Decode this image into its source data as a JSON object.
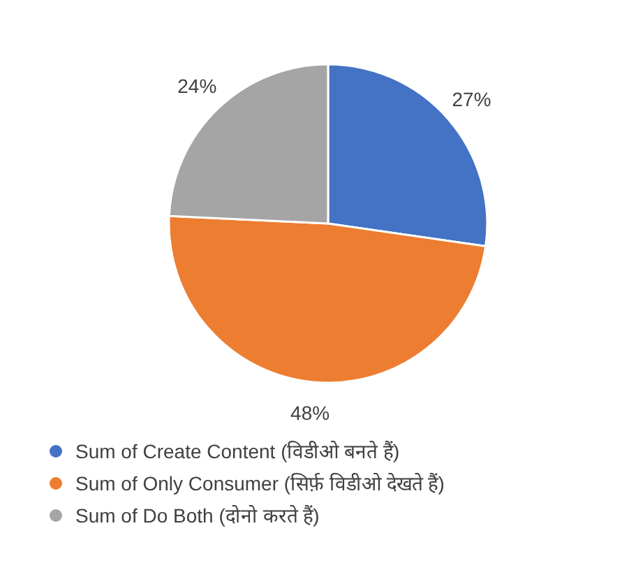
{
  "chart_data": {
    "type": "pie",
    "categories": [
      "Sum of Create Content (विडीओ बनते हैं)",
      "Sum of Only Consumer (सिर्फ़ विडीओ देखते हैं)",
      "Sum of Do Both (दोनो करते हैं)"
    ],
    "values": [
      27,
      48,
      24
    ],
    "colors": [
      "#4472c4",
      "#ed7d31",
      "#a5a5a5"
    ],
    "value_labels": [
      "27%",
      "48%",
      "24%"
    ],
    "legend": "bottom"
  }
}
